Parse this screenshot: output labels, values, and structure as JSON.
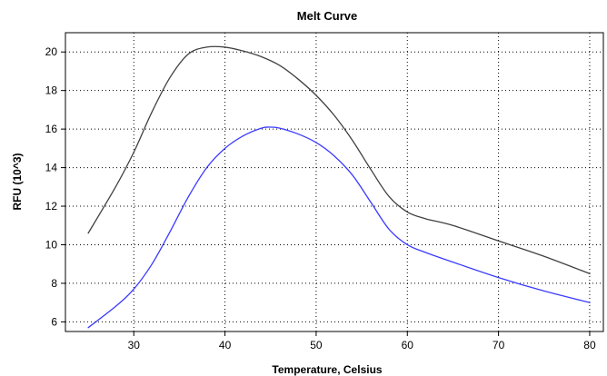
{
  "chart_data": {
    "type": "line",
    "title": "Melt Curve",
    "xlabel": "Temperature, Celsius",
    "ylabel": "RFU (10^3)",
    "xlim": [
      22.5,
      81.5
    ],
    "ylim": [
      5.5,
      21
    ],
    "xticks": [
      30,
      40,
      50,
      60,
      70,
      80
    ],
    "yticks": [
      6,
      8,
      10,
      12,
      14,
      16,
      18,
      20
    ],
    "grid": true,
    "legend": "none",
    "series": [
      {
        "color": "#404040",
        "points": [
          [
            25,
            10.6
          ],
          [
            28,
            13.0
          ],
          [
            30,
            14.8
          ],
          [
            32,
            16.9
          ],
          [
            34,
            18.7
          ],
          [
            36,
            19.9
          ],
          [
            38,
            20.25
          ],
          [
            40,
            20.25
          ],
          [
            42,
            20.05
          ],
          [
            44,
            19.75
          ],
          [
            46,
            19.3
          ],
          [
            48,
            18.6
          ],
          [
            50,
            17.75
          ],
          [
            52,
            16.7
          ],
          [
            54,
            15.4
          ],
          [
            56,
            13.9
          ],
          [
            58,
            12.5
          ],
          [
            60,
            11.7
          ],
          [
            62,
            11.35
          ],
          [
            65,
            11.0
          ],
          [
            70,
            10.2
          ],
          [
            75,
            9.4
          ],
          [
            80,
            8.5
          ]
        ]
      },
      {
        "color": "#3b3bff",
        "points": [
          [
            25,
            5.7
          ],
          [
            28,
            6.8
          ],
          [
            30,
            7.7
          ],
          [
            32,
            9.0
          ],
          [
            34,
            10.7
          ],
          [
            36,
            12.5
          ],
          [
            38,
            14.0
          ],
          [
            40,
            15.0
          ],
          [
            42,
            15.65
          ],
          [
            44,
            16.05
          ],
          [
            45,
            16.1
          ],
          [
            46,
            16.05
          ],
          [
            48,
            15.75
          ],
          [
            50,
            15.3
          ],
          [
            52,
            14.6
          ],
          [
            54,
            13.6
          ],
          [
            56,
            12.2
          ],
          [
            58,
            10.8
          ],
          [
            60,
            10.0
          ],
          [
            62,
            9.6
          ],
          [
            65,
            9.1
          ],
          [
            70,
            8.3
          ],
          [
            75,
            7.6
          ],
          [
            80,
            7.0
          ]
        ]
      }
    ]
  }
}
